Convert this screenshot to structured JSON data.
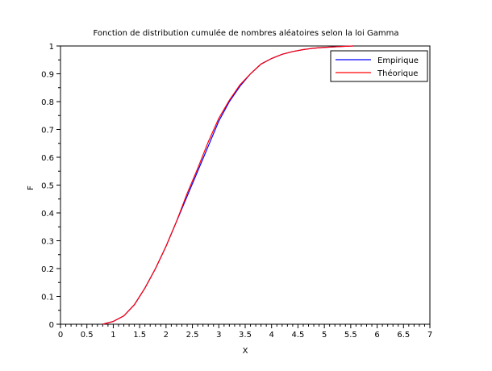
{
  "chart_data": {
    "type": "line",
    "title": "Fonction de distribution cumulée de nombres aléatoires selon la loi Gamma",
    "xlabel": "X",
    "ylabel": "F",
    "xlim": [
      0,
      7
    ],
    "ylim": [
      0,
      1
    ],
    "x_ticks": [
      "0",
      "0.5",
      "1",
      "1.5",
      "2",
      "2.5",
      "3",
      "3.5",
      "4",
      "4.5",
      "5",
      "5.5",
      "6",
      "6.5",
      "7"
    ],
    "y_ticks": [
      "0",
      "0.1",
      "0.2",
      "0.3",
      "0.4",
      "0.5",
      "0.6",
      "0.7",
      "0.8",
      "0.9",
      "1"
    ],
    "grid": false,
    "legend_position": "top-right",
    "series": [
      {
        "name": "Empirique",
        "color": "#0000ff",
        "x": [
          0.8,
          1.0,
          1.2,
          1.4,
          1.6,
          1.8,
          2.0,
          2.2,
          2.4,
          2.6,
          2.8,
          3.0,
          3.2,
          3.4,
          3.6,
          3.8,
          4.0,
          4.2,
          4.4,
          4.6,
          4.8,
          5.0,
          5.2,
          5.4,
          5.55
        ],
        "y": [
          0.0,
          0.01,
          0.03,
          0.07,
          0.13,
          0.2,
          0.28,
          0.37,
          0.46,
          0.55,
          0.64,
          0.73,
          0.8,
          0.855,
          0.9,
          0.935,
          0.955,
          0.97,
          0.98,
          0.987,
          0.992,
          0.995,
          0.997,
          0.999,
          1.0
        ]
      },
      {
        "name": "Théorique",
        "color": "#ff0000",
        "x": [
          0.8,
          1.0,
          1.2,
          1.4,
          1.6,
          1.8,
          2.0,
          2.2,
          2.4,
          2.6,
          2.8,
          3.0,
          3.2,
          3.4,
          3.6,
          3.8,
          4.0,
          4.2,
          4.4,
          4.6,
          4.8,
          5.0,
          5.2,
          5.4,
          5.55
        ],
        "y": [
          0.0,
          0.01,
          0.03,
          0.07,
          0.13,
          0.2,
          0.28,
          0.37,
          0.47,
          0.56,
          0.655,
          0.74,
          0.805,
          0.86,
          0.9,
          0.935,
          0.955,
          0.97,
          0.98,
          0.987,
          0.992,
          0.995,
          0.997,
          0.999,
          1.0
        ]
      }
    ]
  }
}
